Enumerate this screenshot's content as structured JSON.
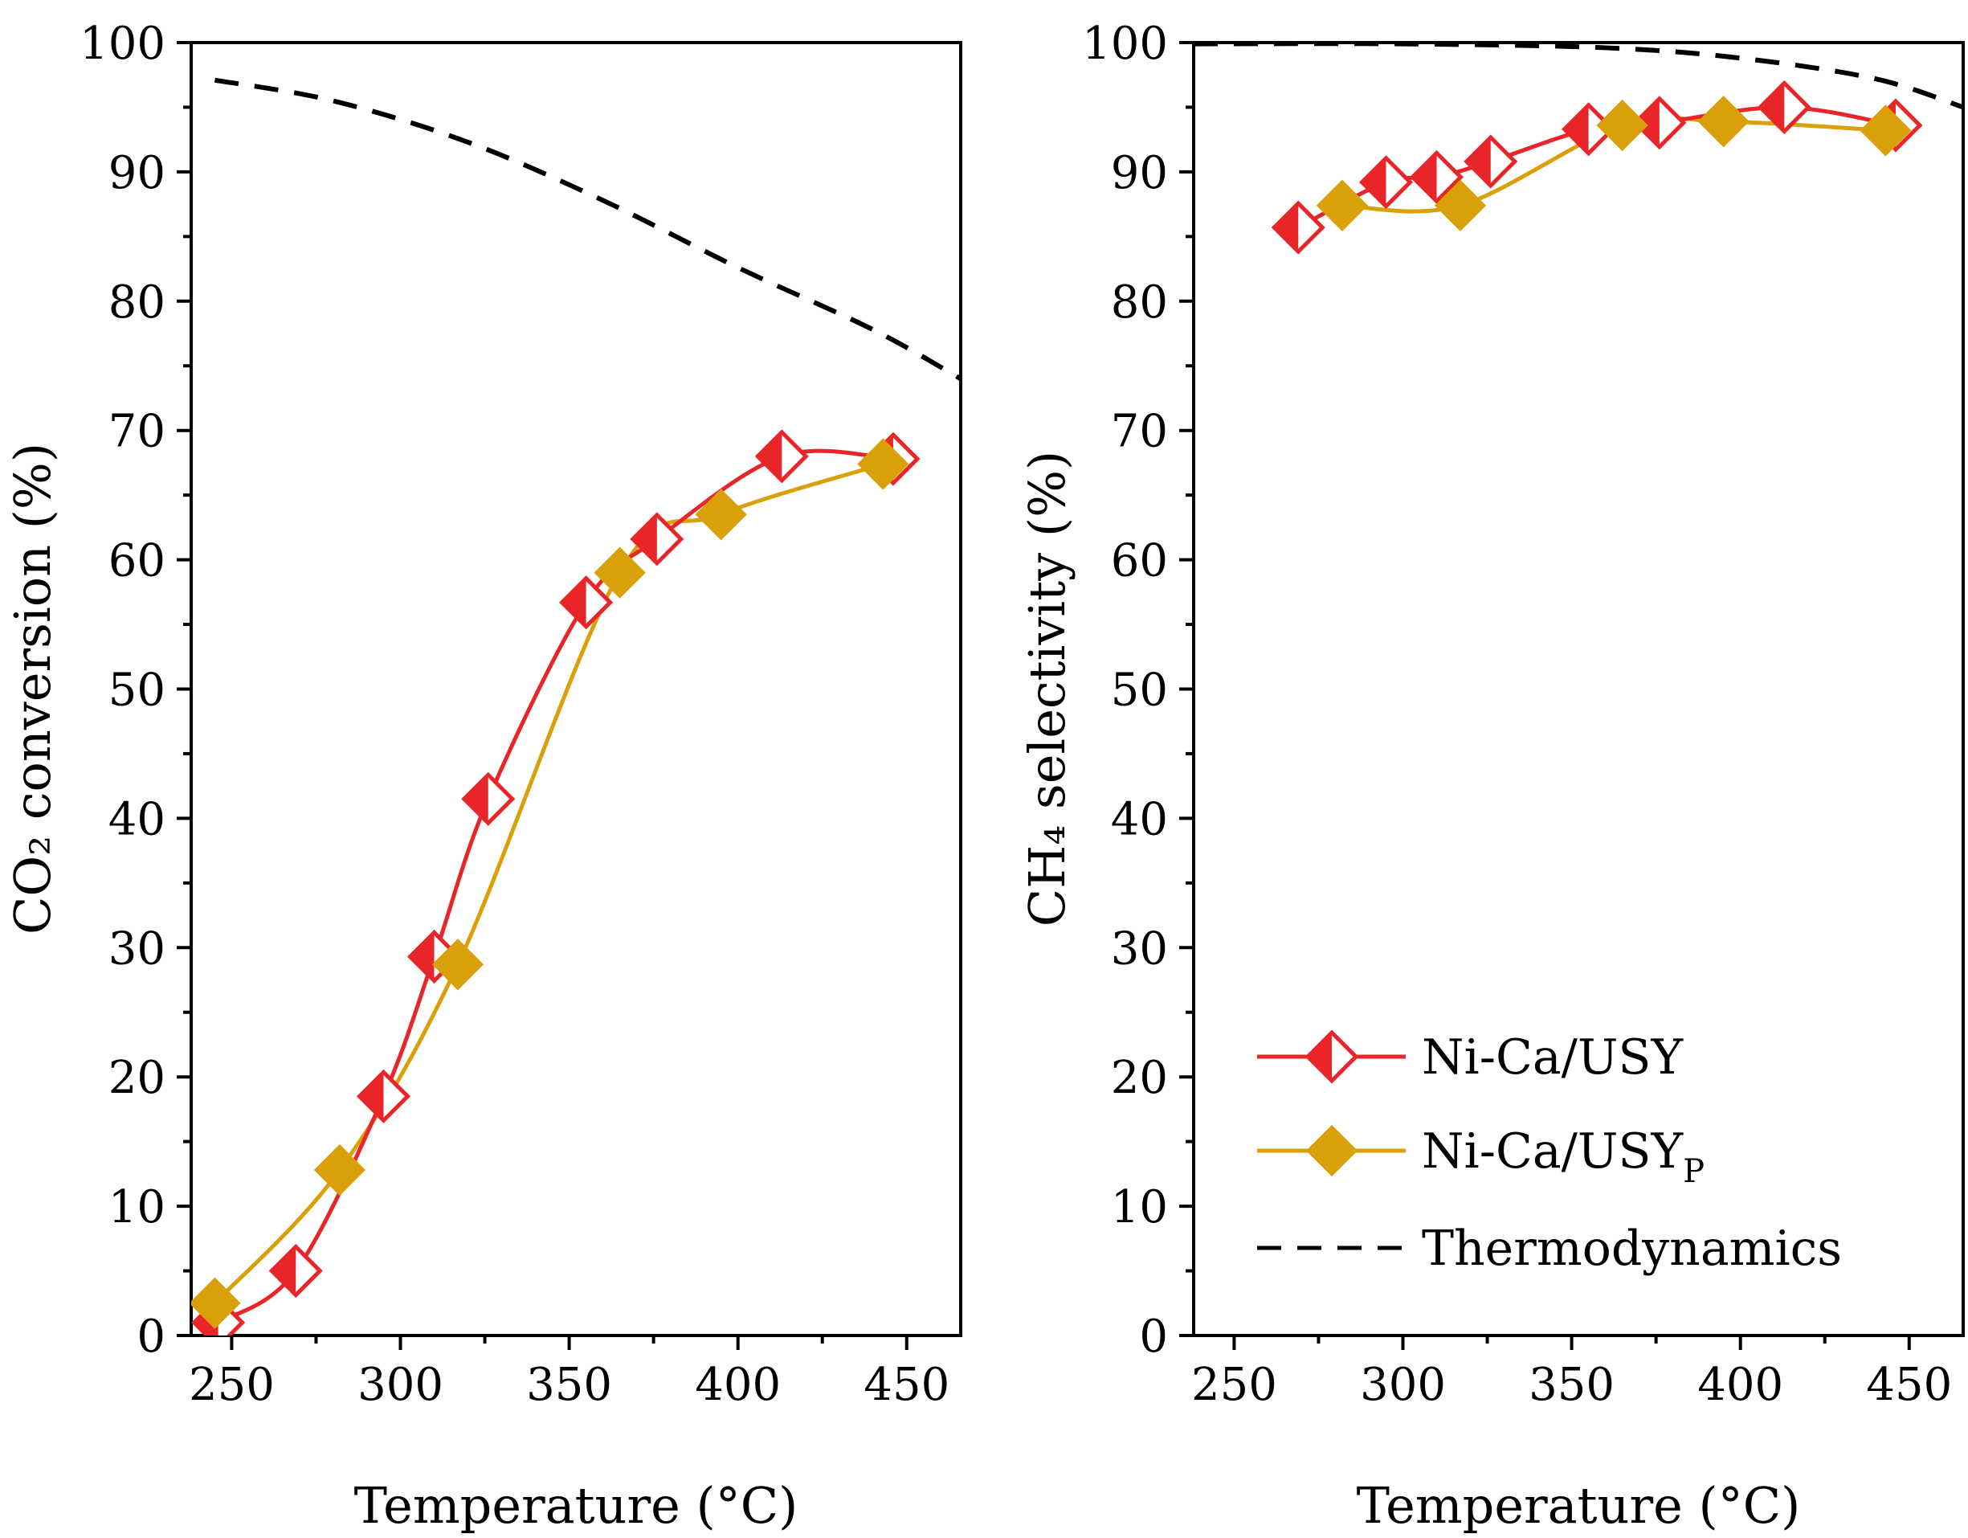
{
  "figure": {
    "colors": {
      "ni_ca_usy": "#e8262a",
      "ni_ca_usy_p": "#d9a00a",
      "thermodynamics": "#000000"
    }
  },
  "chart_data": [
    {
      "type": "line",
      "id": "co2-conversion",
      "xlabel": "Temperature (°C)",
      "ylabel": "CO₂ conversion (%)",
      "xlim": [
        238,
        466
      ],
      "ylim": [
        0,
        100
      ],
      "xticks": [
        250,
        300,
        350,
        400,
        450
      ],
      "yticks": [
        0,
        10,
        20,
        30,
        40,
        50,
        60,
        70,
        80,
        90,
        100
      ],
      "grid": false,
      "series": [
        {
          "name": "Ni-Ca/USY",
          "marker": "half-filled-diamond",
          "x": [
            246,
            269,
            295,
            310,
            326,
            355,
            376,
            413,
            446
          ],
          "y": [
            1.0,
            5.0,
            18.5,
            29.3,
            41.5,
            56.7,
            61.6,
            68.0,
            67.8
          ]
        },
        {
          "name": "Ni-Ca/USY",
          "sub": "P",
          "marker": "filled-diamond",
          "x": [
            245,
            282,
            317,
            365,
            395,
            443
          ],
          "y": [
            2.5,
            12.8,
            28.7,
            59.0,
            63.5,
            67.4
          ]
        },
        {
          "name": "Thermodynamics",
          "style": "dashed",
          "x": [
            245,
            280,
            320,
            360,
            400,
            440,
            466
          ],
          "y": [
            97.1,
            95.5,
            92.3,
            87.8,
            82.6,
            77.8,
            74.0
          ]
        }
      ]
    },
    {
      "type": "line",
      "id": "ch4-selectivity",
      "xlabel": "Temperature (°C)",
      "ylabel": "CH₄ selectivity (%)",
      "xlim": [
        238,
        466
      ],
      "ylim": [
        0,
        100
      ],
      "xticks": [
        250,
        300,
        350,
        400,
        450
      ],
      "yticks": [
        0,
        10,
        20,
        30,
        40,
        50,
        60,
        70,
        80,
        90,
        100
      ],
      "grid": false,
      "legend": "bottom-left",
      "series": [
        {
          "name": "Ni-Ca/USY",
          "marker": "half-filled-diamond",
          "x": [
            269,
            295,
            310,
            326,
            355,
            376,
            413,
            446
          ],
          "y": [
            85.7,
            89.2,
            89.6,
            90.8,
            93.3,
            93.8,
            95.0,
            93.6
          ]
        },
        {
          "name": "Ni-Ca/USY",
          "sub": "P",
          "marker": "filled-diamond",
          "x": [
            282,
            317,
            365,
            395,
            443
          ],
          "y": [
            87.4,
            87.4,
            93.6,
            93.9,
            93.2
          ]
        },
        {
          "name": "Thermodynamics",
          "style": "dashed",
          "x": [
            238,
            300,
            360,
            400,
            440,
            466
          ],
          "y": [
            99.9,
            99.9,
            99.6,
            98.8,
            97.2,
            95.0
          ]
        }
      ]
    }
  ]
}
